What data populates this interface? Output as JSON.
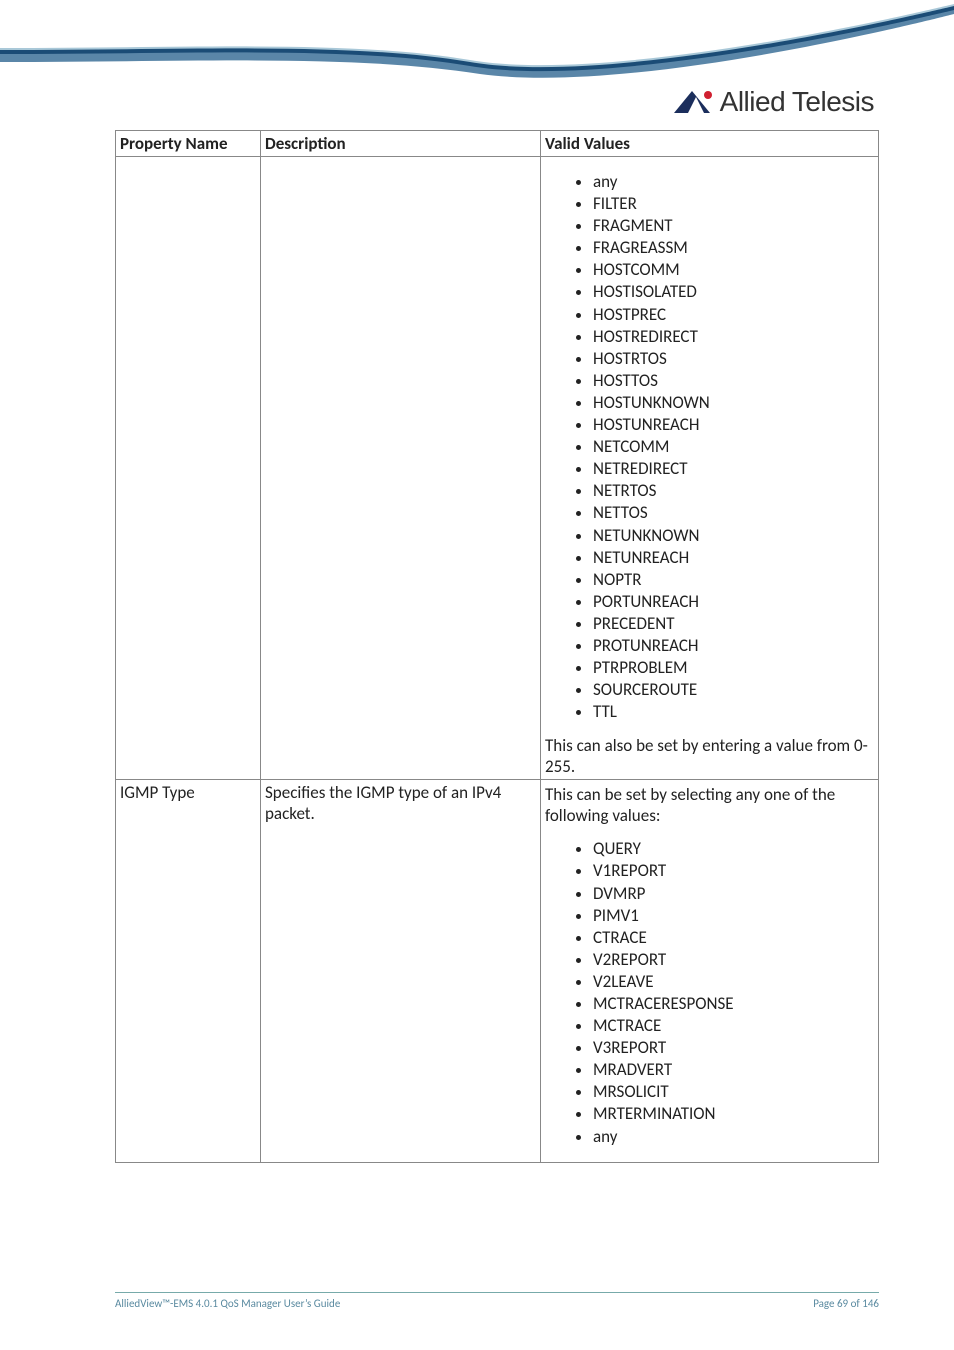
{
  "header": {
    "logo_text": "Allied Telesis",
    "swoosh_colors": {
      "outer": "#a9c8d8",
      "mid": "#1b4c76",
      "inner": "#5a86a8"
    },
    "logo_mark": {
      "triangle_fill": "#1b2e5c",
      "accent_fill": "#d02030"
    }
  },
  "table": {
    "headers": [
      "Property Name",
      "Description",
      "Valid Values"
    ],
    "rows": [
      {
        "property": "",
        "description": "",
        "values_intro": "",
        "values": [
          "any",
          "FILTER",
          "FRAGMENT",
          "FRAGREASSM",
          "HOSTCOMM",
          "HOSTISOLATED",
          "HOSTPREC",
          "HOSTREDIRECT",
          "HOSTRTOS",
          "HOSTTOS",
          "HOSTUNKNOWN",
          "HOSTUNREACH",
          "NETCOMM",
          "NETREDIRECT",
          "NETRTOS",
          "NETTOS",
          "NETUNKNOWN",
          "NETUNREACH",
          "NOPTR",
          "PORTUNREACH",
          "PRECEDENT",
          "PROTUNREACH",
          "PTRPROBLEM",
          "SOURCEROUTE",
          "TTL"
        ],
        "values_outro": "This can also be set by entering a value from 0-255."
      },
      {
        "property": "IGMP Type",
        "description": "Specifies the IGMP type of an IPv4 packet.",
        "values_intro": "This can be set by selecting any one of the following values:",
        "values": [
          "QUERY",
          "V1REPORT",
          "DVMRP",
          "PIMV1",
          "CTRACE",
          "V2REPORT",
          "V2LEAVE",
          "MCTRACERESPONSE",
          "MCTRACE",
          "V3REPORT",
          "MRADVERT",
          "MRSOLICIT",
          "MRTERMINATION",
          "any"
        ],
        "values_outro": ""
      }
    ]
  },
  "footer": {
    "left": "AlliedView™-EMS 4.0.1 QoS Manager User’s Guide",
    "right": "Page 69 of 146"
  }
}
